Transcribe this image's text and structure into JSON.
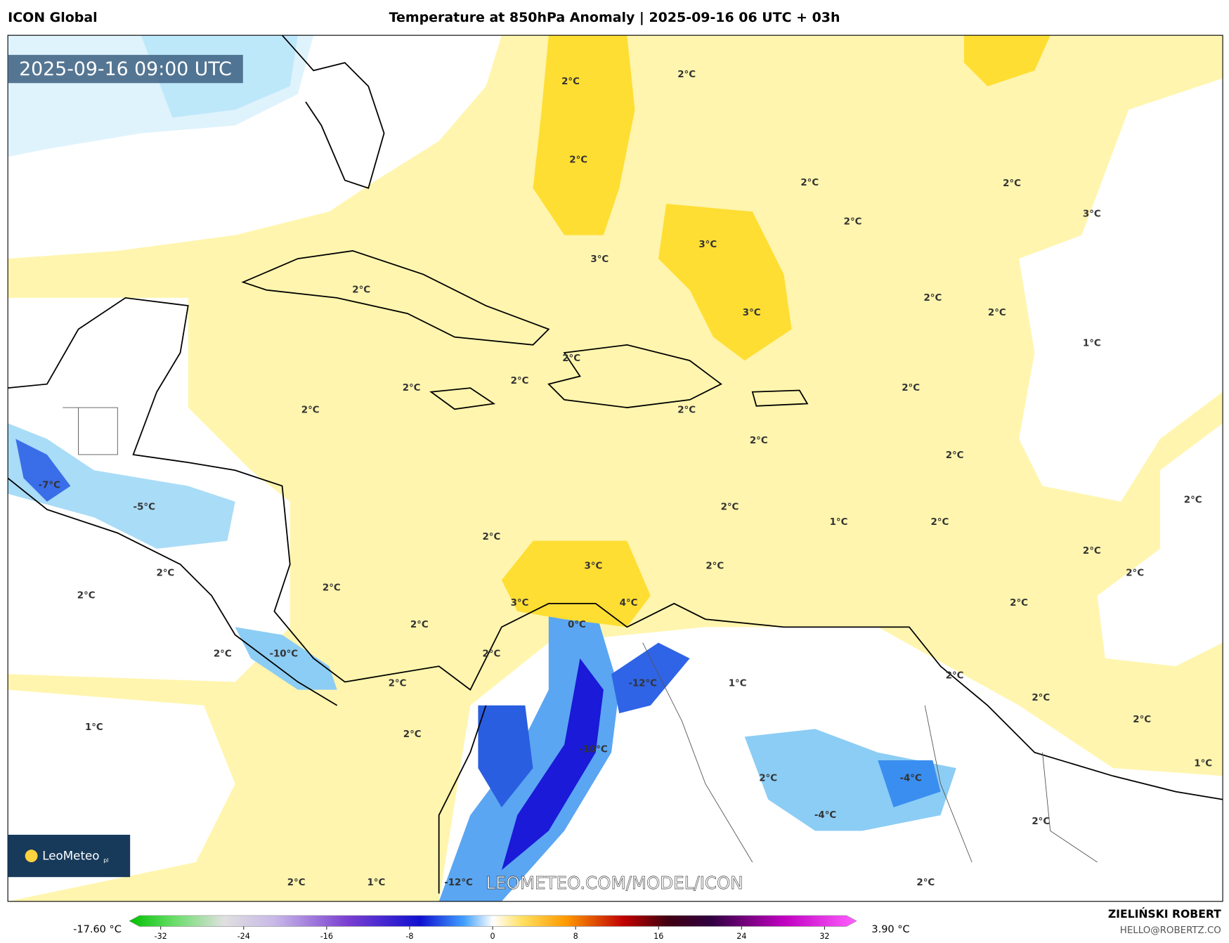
{
  "header": {
    "model": "ICON Global",
    "title": "Temperature at 850hPa Anomaly | 2025-09-16 06 UTC + 03h"
  },
  "timestamp": "2025-09-16 09:00 UTC",
  "logo": {
    "name": "LeoMeteo",
    "suffix": "pl"
  },
  "watermark": "LEOMETEO.COM/MODEL/ICON",
  "contour_labels": [
    "2°C",
    "2°C",
    "2°C",
    "2°C",
    "2°C",
    "3°C",
    "2°C",
    "3°C",
    "3°C",
    "2°C",
    "3°C",
    "2°C",
    "2°C",
    "1°C",
    "2°C",
    "2°C",
    "2°C",
    "2°C",
    "2°C",
    "2°C",
    "2°C",
    "2°C",
    "-7°C",
    "-5°C",
    "2°C",
    "2°C",
    "1°C",
    "2°C",
    "2°C",
    "2°C",
    "2°C",
    "3°C",
    "2°C",
    "2°C",
    "2°C",
    "2°C",
    "3°C",
    "4°C",
    "2°C",
    "2°C",
    "0°C",
    "-10°C",
    "2°C",
    "2°C",
    "-12°C",
    "1°C",
    "2°C",
    "2°C",
    "2°C",
    "2°C",
    "1°C",
    "2°C",
    "-10°C",
    "1°C",
    "2°C",
    "-4°C",
    "-4°C",
    "2°C",
    "2°C",
    "1°C",
    "-12°C",
    "2°C"
  ],
  "colorbar": {
    "min_label": "-17.60 °C",
    "max_label": "3.90 °C",
    "ticks": [
      -32,
      -24,
      -16,
      -8,
      0,
      8,
      16,
      24,
      32
    ]
  },
  "credits": {
    "author": "ZIELIŃSKI ROBERT",
    "email": "HELLO@ROBERTZ.CO"
  }
}
